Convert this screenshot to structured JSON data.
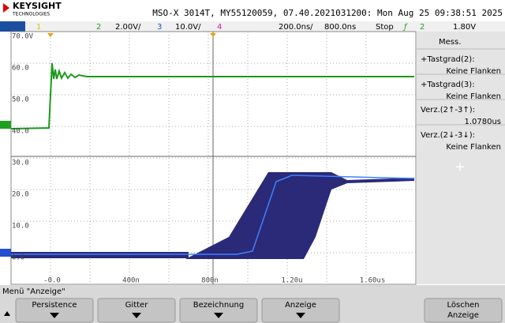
{
  "header": {
    "brand": "KEYSIGHT",
    "brand_sub": "TECHNOLOGIES",
    "title": "MSO-X 3014T, MY55120059, 07.40.2021031200: Mon Aug 25 09:38:51 2025"
  },
  "channel_bar": {
    "ch1": "1",
    "ch2": "2",
    "ch2_scale": "2.00V/",
    "ch3": "3",
    "ch3_scale": "10.0V/",
    "ch4": "4",
    "time_scale": "200.0ns/",
    "delay": "800.0ns",
    "run_state": "Stop",
    "trig_source": "2",
    "trig_level": "1.80V"
  },
  "plot": {
    "y_labels": [
      "70.0V",
      "60.0",
      "50.0",
      "40.0",
      "30.0",
      "20.0",
      "10.0",
      "0.0"
    ],
    "x_labels": [
      "-0.0",
      "400n",
      "800n",
      "1.20u",
      "1.60us"
    ]
  },
  "side_panel": {
    "header": "Mess.",
    "items": [
      {
        "label": "+Tastgrad(2):",
        "value": "Keine Flanken"
      },
      {
        "label": "+Tastgrad(3):",
        "value": "Keine Flanken"
      },
      {
        "label": "Verz.(2↑-3↑):",
        "value": "1.0780us"
      },
      {
        "label": "Verz.(2↓-3↓):",
        "value": "Keine Flanken"
      }
    ],
    "add": "+"
  },
  "menu": {
    "title": "Menü \"Anzeige\"",
    "keys": [
      "Persistence",
      "Gitter",
      "Bezeichnung",
      "Anzeige",
      "Löschen Anzeige"
    ]
  }
}
